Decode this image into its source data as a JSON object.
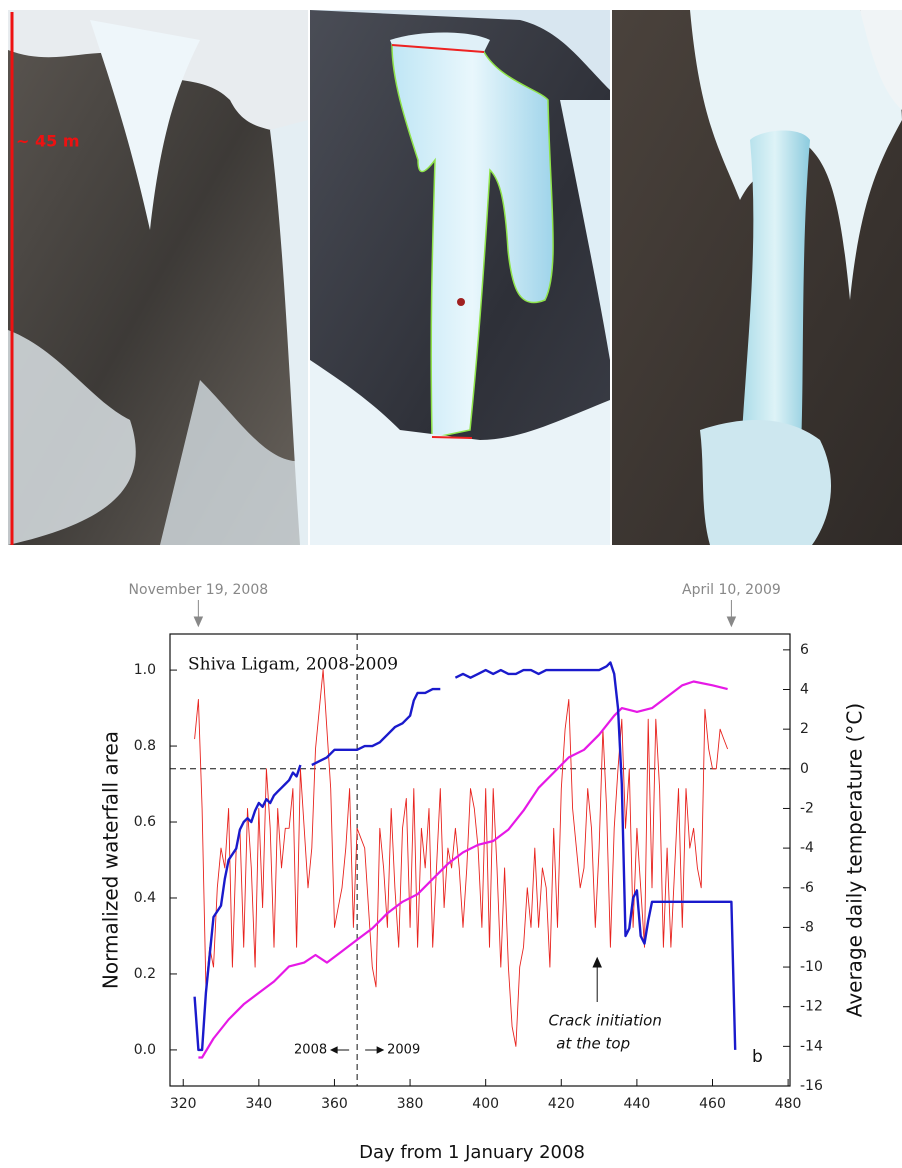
{
  "photos": {
    "scale_label": "~ 45 m"
  },
  "chart_data": {
    "type": "line",
    "inset_title": "Shiva Ligam, 2008-2009",
    "panel_label": "b",
    "xlabel": "Day from 1 January 2008",
    "ylabel": "Normalized waterfall area",
    "y2label": "Average daily temperature (°C)",
    "xlim": [
      316.5,
      480.5
    ],
    "xticks": [
      320,
      340,
      360,
      380,
      400,
      420,
      440,
      460,
      480
    ],
    "ylim": [
      -0.095,
      1.095
    ],
    "yticks": [
      {
        "value": 0,
        "label": "0.0"
      },
      0.2,
      0.4,
      0.6,
      0.8,
      {
        "value": 1,
        "label": "1.0"
      }
    ],
    "y2lim": [
      -16,
      6.8
    ],
    "y2ticks": [
      -16,
      -14,
      -12,
      -10,
      -8,
      -6,
      -4,
      -2,
      0,
      2,
      4,
      6
    ],
    "year_boundary": {
      "x": 366,
      "left_label": "2008",
      "right_label": "2009"
    },
    "zero_line_y2": 0,
    "date_markers": [
      {
        "text": "November 19, 2008",
        "x": 324
      },
      {
        "text": "April 10, 2009",
        "x": 465
      }
    ],
    "crack_marker": {
      "x": 429.5,
      "lines": [
        "Crack initiation",
        "at the top"
      ]
    },
    "series": [
      {
        "color": "#e8231e",
        "axis": "y2",
        "width": 0.9,
        "x": [
          323,
          324,
          325,
          326,
          327,
          328,
          329,
          330,
          331,
          332,
          333,
          334,
          335,
          336,
          337,
          338,
          339,
          340,
          341,
          342,
          343,
          344,
          345,
          346,
          347,
          348,
          349,
          350,
          351,
          352,
          353,
          354,
          355,
          356,
          357,
          358,
          359,
          360,
          361,
          362,
          363,
          364,
          365,
          366,
          367,
          368,
          369,
          370,
          371,
          372,
          373,
          374,
          375,
          376,
          377,
          378,
          379,
          380,
          381,
          382,
          383,
          384,
          385,
          386,
          387,
          388,
          389,
          390,
          391,
          392,
          393,
          394,
          395,
          396,
          397,
          398,
          399,
          400,
          401,
          402,
          403,
          404,
          405,
          406,
          407,
          408,
          409,
          410,
          411,
          412,
          413,
          414,
          415,
          416,
          417,
          418,
          419,
          420,
          421,
          422,
          423,
          424,
          425,
          426,
          427,
          428,
          429,
          430,
          431,
          432,
          433,
          434,
          435,
          436,
          437,
          438,
          439,
          440,
          441,
          442,
          443,
          444,
          445,
          446,
          447,
          448,
          449,
          450,
          451,
          452,
          453,
          454,
          455,
          456,
          457,
          458,
          459,
          460,
          461,
          462,
          463,
          464
        ],
        "values": [
          1.5,
          3.5,
          -2,
          -11,
          -9,
          -10,
          -6,
          -4,
          -5,
          -2,
          -10,
          -4,
          -3,
          -9,
          -2,
          -5,
          -10,
          -2,
          -7,
          0,
          -3,
          -9,
          -2,
          -5,
          -3,
          -3,
          -1,
          -9,
          0,
          -3,
          -6,
          -4,
          1,
          3,
          5,
          2,
          -1,
          -8,
          -7,
          -6,
          -4,
          -1,
          -8,
          -3,
          -3.5,
          -4,
          -7,
          -10,
          -11,
          -3,
          -5,
          -8,
          -2,
          -6,
          -9,
          -3,
          -1.5,
          -8,
          -1,
          -9,
          -3,
          -5,
          -2,
          -9,
          -5,
          -1,
          -7,
          -4,
          -5,
          -3,
          -5,
          -8,
          -5,
          -1,
          -2,
          -4,
          -8,
          -1,
          -9,
          -1,
          -5,
          -10,
          -5,
          -10,
          -13,
          -14,
          -10,
          -9,
          -6,
          -8,
          -4,
          -8,
          -5,
          -6,
          -10,
          -3,
          -8,
          -1,
          2,
          3.5,
          -2,
          -4,
          -6,
          -5,
          -1,
          -3,
          -8,
          -4,
          2,
          -2,
          -9,
          -3,
          0,
          2.5,
          -3,
          0,
          -8,
          -3,
          -6,
          -9,
          2.5,
          -6,
          2.5,
          -1,
          -9,
          -4,
          -9,
          -5,
          -1,
          -8,
          -1,
          -4,
          -3,
          -5,
          -6,
          3,
          1,
          0,
          0,
          2,
          1.5,
          1
        ]
      },
      {
        "color": "#e619e6",
        "axis": "y",
        "width": 2.2,
        "x": [
          324,
          325,
          328,
          332,
          336,
          340,
          344,
          348,
          352,
          355,
          358,
          362,
          366,
          370,
          374,
          378,
          382,
          386,
          390,
          394,
          398,
          402,
          406,
          410,
          414,
          418,
          422,
          426,
          430,
          434,
          436,
          440,
          444,
          448,
          452,
          455,
          460,
          464
        ],
        "values": [
          -0.02,
          -0.02,
          0.03,
          0.08,
          0.12,
          0.15,
          0.18,
          0.22,
          0.23,
          0.25,
          0.23,
          0.26,
          0.29,
          0.32,
          0.36,
          0.39,
          0.41,
          0.45,
          0.49,
          0.52,
          0.54,
          0.55,
          0.58,
          0.63,
          0.69,
          0.73,
          0.77,
          0.79,
          0.83,
          0.88,
          0.9,
          0.89,
          0.9,
          0.93,
          0.96,
          0.97,
          0.96,
          0.95
        ]
      },
      {
        "color": "#1a1acc",
        "axis": "y",
        "width": 2.4,
        "x": [
          323,
          324,
          325,
          326,
          327,
          328,
          330,
          331,
          332,
          334,
          335,
          336,
          337,
          338,
          339,
          340,
          341,
          342,
          343,
          344,
          345,
          346,
          347,
          348,
          349,
          350,
          351,
          352,
          354,
          356,
          358,
          360,
          362,
          364,
          366,
          368,
          370,
          372,
          374,
          376,
          378,
          380,
          381,
          382,
          384,
          386,
          388,
          390,
          392,
          394,
          396,
          398,
          400,
          402,
          404,
          406,
          408,
          410,
          412,
          414,
          416,
          418,
          420,
          422,
          424,
          426,
          428,
          430,
          432,
          433,
          434,
          435,
          436,
          437,
          438,
          439,
          440,
          441,
          442,
          443,
          444,
          446,
          450,
          455,
          460,
          465,
          466
        ],
        "values": [
          0.14,
          0,
          0,
          0.15,
          0.25,
          0.35,
          0.38,
          0.45,
          0.5,
          0.53,
          0.58,
          0.6,
          0.61,
          0.6,
          0.63,
          0.65,
          0.64,
          0.66,
          0.65,
          0.67,
          0.68,
          0.69,
          0.7,
          0.71,
          0.73,
          0.72,
          0.75,
          null,
          0.75,
          0.76,
          0.77,
          0.79,
          0.79,
          0.79,
          0.79,
          0.8,
          0.8,
          0.81,
          0.83,
          0.85,
          0.86,
          0.88,
          0.92,
          0.94,
          0.94,
          0.95,
          0.95,
          null,
          0.98,
          0.99,
          0.98,
          0.99,
          1.0,
          0.99,
          1.0,
          0.99,
          0.99,
          1.0,
          1.0,
          0.99,
          1.0,
          1.0,
          1.0,
          1.0,
          1.0,
          1.0,
          1.0,
          1.0,
          1.01,
          1.02,
          0.99,
          0.9,
          0.7,
          0.3,
          0.32,
          0.4,
          0.42,
          0.3,
          0.28,
          0.34,
          0.39,
          0.39,
          0.39,
          0.39,
          0.39,
          0.39,
          0.0
        ]
      }
    ]
  }
}
